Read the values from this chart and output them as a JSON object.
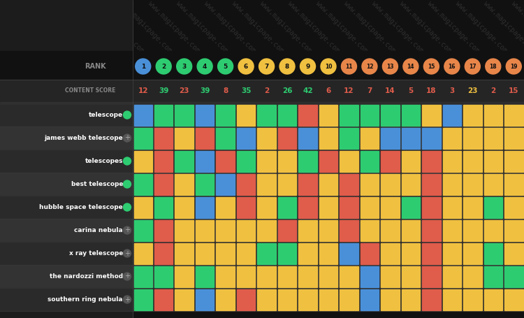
{
  "bg_color": "#1a1a1a",
  "rank_label": "RANK",
  "content_score_label": "CONTENT SCORE",
  "ranks": [
    1,
    2,
    3,
    4,
    5,
    6,
    7,
    8,
    9,
    10,
    11,
    12,
    13,
    14,
    15,
    16,
    17,
    18,
    19
  ],
  "content_scores": [
    12,
    39,
    23,
    39,
    8,
    35,
    2,
    26,
    42,
    6,
    12,
    7,
    14,
    5,
    18,
    3,
    23,
    2,
    15
  ],
  "rank_colors": {
    "1": "#4a90d9",
    "2": "#2ecc71",
    "3": "#2ecc71",
    "4": "#2ecc71",
    "5": "#2ecc71",
    "6": "#f0c040",
    "7": "#f0c040",
    "8": "#f0c040",
    "9": "#f0c040",
    "10": "#f0c040",
    "11": "#e8864a",
    "12": "#e8864a",
    "13": "#e8864a",
    "14": "#e8864a",
    "15": "#e8864a",
    "16": "#e8864a",
    "17": "#e8864a",
    "18": "#e8864a",
    "19": "#e8864a"
  },
  "terms": [
    "telescope",
    "james webb telescope",
    "telescopes",
    "best telescope",
    "hubble space telescope",
    "carina nebula",
    "x ray telescope",
    "the nardozzi method",
    "southern ring nebula"
  ],
  "term_has_green_dot": [
    true,
    false,
    true,
    true,
    true,
    false,
    false,
    false,
    false
  ],
  "cell_colors": [
    [
      "B",
      "G",
      "G",
      "B",
      "G",
      "Y",
      "G",
      "G",
      "R",
      "Y",
      "G",
      "G",
      "G",
      "G",
      "Y",
      "B",
      "Y",
      "Y",
      "Y"
    ],
    [
      "G",
      "R",
      "Y",
      "R",
      "G",
      "B",
      "Y",
      "R",
      "B",
      "Y",
      "G",
      "Y",
      "B",
      "B",
      "B",
      "Y",
      "Y",
      "Y",
      "Y"
    ],
    [
      "Y",
      "R",
      "G",
      "B",
      "R",
      "G",
      "Y",
      "Y",
      "G",
      "R",
      "Y",
      "G",
      "R",
      "Y",
      "R",
      "Y",
      "Y",
      "Y",
      "Y"
    ],
    [
      "G",
      "R",
      "Y",
      "G",
      "B",
      "R",
      "Y",
      "Y",
      "R",
      "Y",
      "R",
      "Y",
      "Y",
      "Y",
      "R",
      "Y",
      "Y",
      "Y",
      "Y"
    ],
    [
      "Y",
      "G",
      "Y",
      "B",
      "Y",
      "R",
      "Y",
      "G",
      "R",
      "Y",
      "R",
      "Y",
      "Y",
      "G",
      "R",
      "Y",
      "Y",
      "G",
      "Y"
    ],
    [
      "G",
      "R",
      "Y",
      "Y",
      "Y",
      "Y",
      "Y",
      "R",
      "Y",
      "Y",
      "R",
      "Y",
      "Y",
      "Y",
      "R",
      "Y",
      "Y",
      "Y",
      "Y"
    ],
    [
      "Y",
      "R",
      "Y",
      "Y",
      "Y",
      "Y",
      "G",
      "G",
      "Y",
      "Y",
      "B",
      "R",
      "Y",
      "Y",
      "R",
      "Y",
      "Y",
      "G",
      "Y"
    ],
    [
      "G",
      "G",
      "Y",
      "G",
      "Y",
      "Y",
      "Y",
      "Y",
      "Y",
      "Y",
      "Y",
      "B",
      "Y",
      "Y",
      "R",
      "Y",
      "Y",
      "G",
      "G"
    ],
    [
      "G",
      "R",
      "Y",
      "B",
      "Y",
      "R",
      "Y",
      "Y",
      "Y",
      "Y",
      "Y",
      "B",
      "Y",
      "Y",
      "R",
      "Y",
      "Y",
      "Y",
      "Y"
    ]
  ],
  "color_map": {
    "B": "#4a90d9",
    "G": "#2ecc71",
    "R": "#e05c4b",
    "Y": "#f0c040"
  },
  "score_text_colors": [
    "#e05c4b",
    "#2ecc71",
    "#e05c4b",
    "#2ecc71",
    "#e05c4b",
    "#2ecc71",
    "#e05c4b",
    "#2ecc71",
    "#2ecc71",
    "#e05c4b",
    "#e05c4b",
    "#e05c4b",
    "#e05c4b",
    "#e05c4b",
    "#e05c4b",
    "#e05c4b",
    "#f0c040",
    "#e05c4b",
    "#e05c4b"
  ],
  "watermark_text": "www.magicpage.com/bl",
  "figsize": [
    7.5,
    4.55
  ],
  "dpi": 100
}
